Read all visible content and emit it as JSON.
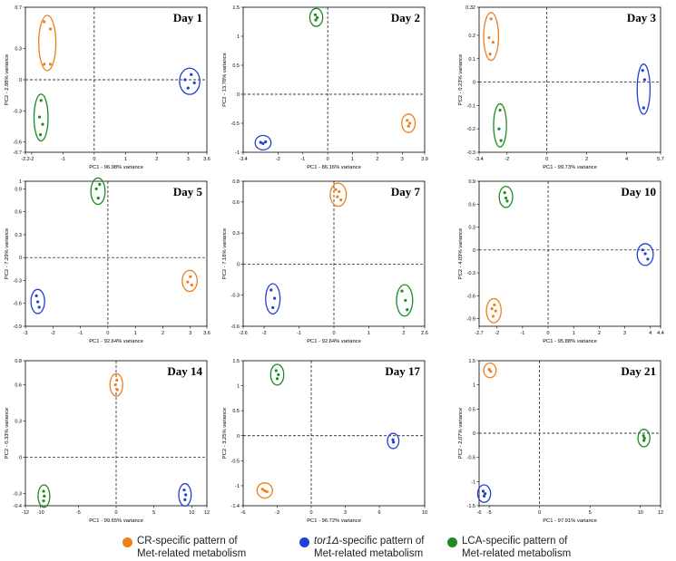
{
  "colors": {
    "CR": "#f07f19",
    "tor1": "#1f3fd8",
    "LCA": "#1f8a1f"
  },
  "legend": [
    {
      "key": "CR",
      "line1": "CR-specific pattern of",
      "line2": "Met-related metabolism"
    },
    {
      "key": "tor1",
      "line1_italic": "tor1Δ",
      "line1_rest": "-specific pattern of",
      "line2": "Met-related metabolism"
    },
    {
      "key": "LCA",
      "line1": "LCA-specific pattern of",
      "line2": "Met-related metabolism"
    }
  ],
  "chart_data": [
    {
      "type": "scatter",
      "title": "Day 1",
      "xlabel": "PC1 - 96.98% variance",
      "ylabel": "PC2 - 2.88% variance",
      "xlim": [
        -2.2,
        3.6
      ],
      "ylim": [
        -0.7,
        0.7
      ],
      "xticks": [
        "-2.2",
        "-2",
        "-1",
        "0",
        "1",
        "2",
        "3",
        "3.6"
      ],
      "xtick_vals": [
        -2.2,
        -2,
        -1,
        0,
        1,
        2,
        3,
        3.6
      ],
      "yticks": [
        "0.7",
        "0.3",
        "0",
        "-0.3",
        "-0.6",
        "-0.7"
      ],
      "ytick_vals": [
        0.7,
        0.3,
        0,
        -0.3,
        -0.6,
        -0.7
      ],
      "series": [
        {
          "name": "CR",
          "points": [
            [
              -1.6,
              0.56
            ],
            [
              -1.4,
              0.49
            ],
            [
              -1.6,
              0.15
            ],
            [
              -1.4,
              0.15
            ]
          ]
        },
        {
          "name": "tor1",
          "points": [
            [
              3.1,
              0.05
            ],
            [
              2.9,
              0.0
            ],
            [
              3.2,
              -0.03
            ],
            [
              3.0,
              -0.08
            ]
          ]
        },
        {
          "name": "LCA",
          "points": [
            [
              -1.7,
              -0.2
            ],
            [
              -1.75,
              -0.36
            ],
            [
              -1.65,
              -0.43
            ],
            [
              -1.72,
              -0.53
            ]
          ]
        }
      ]
    },
    {
      "type": "scatter",
      "title": "Day 2",
      "xlabel": "PC1 - 86.16% variance",
      "ylabel": "PC2 - 13.78% variance",
      "xlim": [
        -3.4,
        3.9
      ],
      "ylim": [
        -1,
        1.5
      ],
      "xticks": [
        "-3.4",
        "-2",
        "-1",
        "0",
        "1",
        "2",
        "3",
        "3.9"
      ],
      "xtick_vals": [
        -3.4,
        -2,
        -1,
        0,
        1,
        2,
        3,
        3.9
      ],
      "yticks": [
        "1.5",
        "1",
        "0.5",
        "0",
        "-0.5",
        "-1"
      ],
      "ytick_vals": [
        1.5,
        1,
        0.5,
        0,
        -0.5,
        -1
      ],
      "series": [
        {
          "name": "CR",
          "points": [
            [
              3.2,
              -0.45
            ],
            [
              3.3,
              -0.5
            ],
            [
              3.25,
              -0.55
            ]
          ]
        },
        {
          "name": "tor1",
          "points": [
            [
              -2.7,
              -0.83
            ],
            [
              -2.6,
              -0.85
            ],
            [
              -2.5,
              -0.82
            ]
          ]
        },
        {
          "name": "LCA",
          "points": [
            [
              -0.5,
              1.37
            ],
            [
              -0.42,
              1.32
            ],
            [
              -0.48,
              1.28
            ]
          ]
        }
      ]
    },
    {
      "type": "scatter",
      "title": "Day 3",
      "xlabel": "PC1 - 99.73% variance",
      "ylabel": "PC2 - 0.23% variance",
      "xlim": [
        -3.4,
        5.7
      ],
      "ylim": [
        -0.3,
        0.32
      ],
      "xticks": [
        "-3.4",
        "-2",
        "0",
        "2",
        "4",
        "5.7"
      ],
      "xtick_vals": [
        -3.4,
        -2,
        0,
        2,
        4,
        5.7
      ],
      "yticks": [
        "0.32",
        "0.2",
        "0.1",
        "0",
        "-0.1",
        "-0.2",
        "-0.3"
      ],
      "ytick_vals": [
        0.32,
        0.2,
        0.1,
        0,
        -0.1,
        -0.2,
        -0.3
      ],
      "series": [
        {
          "name": "CR",
          "points": [
            [
              -2.8,
              0.27
            ],
            [
              -2.9,
              0.19
            ],
            [
              -2.7,
              0.17
            ],
            [
              -2.85,
              0.12
            ]
          ]
        },
        {
          "name": "tor1",
          "points": [
            [
              4.8,
              0.05
            ],
            [
              4.9,
              0.01
            ],
            [
              4.85,
              -0.11
            ]
          ]
        },
        {
          "name": "LCA",
          "points": [
            [
              -2.35,
              -0.12
            ],
            [
              -2.4,
              -0.2
            ],
            [
              -2.3,
              -0.25
            ]
          ]
        }
      ]
    },
    {
      "type": "scatter",
      "title": "Day 5",
      "xlabel": "PC1 - 92.64% variance",
      "ylabel": "PC2 - 7.29% variance",
      "xlim": [
        -3,
        3.6
      ],
      "ylim": [
        -0.9,
        1.0
      ],
      "xticks": [
        "-3",
        "-2",
        "-1",
        "0",
        "1",
        "2",
        "3",
        "3.6"
      ],
      "xtick_vals": [
        -3,
        -2,
        -1,
        0,
        1,
        2,
        3,
        3.6
      ],
      "yticks": [
        "1",
        "0.9",
        "0.6",
        "0.3",
        "0",
        "-0.3",
        "-0.6",
        "-0.9"
      ],
      "ytick_vals": [
        1.0,
        0.9,
        0.6,
        0.3,
        0,
        -0.3,
        -0.6,
        -0.9
      ],
      "series": [
        {
          "name": "CR",
          "points": [
            [
              3.0,
              -0.25
            ],
            [
              2.9,
              -0.32
            ],
            [
              3.05,
              -0.36
            ]
          ]
        },
        {
          "name": "tor1",
          "points": [
            [
              -2.6,
              -0.5
            ],
            [
              -2.55,
              -0.58
            ],
            [
              -2.5,
              -0.65
            ]
          ]
        },
        {
          "name": "LCA",
          "points": [
            [
              -0.3,
              0.96
            ],
            [
              -0.42,
              0.9
            ],
            [
              -0.35,
              0.78
            ]
          ]
        }
      ]
    },
    {
      "type": "scatter",
      "title": "Day 7",
      "xlabel": "PC1 - 92.64% variance",
      "ylabel": "PC2 - 7.18% variance",
      "xlim": [
        -2.6,
        2.6
      ],
      "ylim": [
        -0.6,
        0.8
      ],
      "xticks": [
        "-2.6",
        "-2",
        "-1",
        "0",
        "1",
        "2",
        "2.6"
      ],
      "xtick_vals": [
        -2.6,
        -2,
        -1,
        0,
        1,
        2,
        2.6
      ],
      "yticks": [
        "0.8",
        "0.6",
        "0.3",
        "0",
        "-0.3",
        "-0.6"
      ],
      "ytick_vals": [
        0.8,
        0.6,
        0.3,
        0,
        -0.3,
        -0.6
      ],
      "series": [
        {
          "name": "CR",
          "points": [
            [
              0.05,
              0.72
            ],
            [
              0.15,
              0.7
            ],
            [
              0.1,
              0.65
            ],
            [
              0.2,
              0.62
            ]
          ]
        },
        {
          "name": "tor1",
          "points": [
            [
              -1.8,
              -0.25
            ],
            [
              -1.7,
              -0.33
            ],
            [
              -1.75,
              -0.42
            ]
          ]
        },
        {
          "name": "LCA",
          "points": [
            [
              1.95,
              -0.26
            ],
            [
              2.05,
              -0.35
            ],
            [
              2.1,
              -0.44
            ]
          ]
        }
      ]
    },
    {
      "type": "scatter",
      "title": "Day 10",
      "xlabel": "PC1 - 95.88% variance",
      "ylabel": "PC2 - 4.09% variance",
      "xlim": [
        -2.7,
        4.4
      ],
      "ylim": [
        -1,
        0.9
      ],
      "xticks": [
        "-2.7",
        "-2",
        "-1",
        "0",
        "1",
        "2",
        "3",
        "4",
        "4.4"
      ],
      "xtick_vals": [
        -2.7,
        -2,
        -1,
        0,
        1,
        2,
        3,
        4,
        4.4
      ],
      "yticks": [
        "0.9",
        "0.6",
        "0.3",
        "0",
        "-0.3",
        "-0.6",
        "-0.9"
      ],
      "ytick_vals": [
        0.9,
        0.6,
        0.3,
        0,
        -0.3,
        -0.6,
        -0.9
      ],
      "series": [
        {
          "name": "CR",
          "points": [
            [
              -2.1,
              -0.72
            ],
            [
              -2.2,
              -0.77
            ],
            [
              -2.05,
              -0.8
            ],
            [
              -2.15,
              -0.87
            ]
          ]
        },
        {
          "name": "tor1",
          "points": [
            [
              3.7,
              0.0
            ],
            [
              3.8,
              -0.05
            ],
            [
              3.9,
              -0.12
            ]
          ]
        },
        {
          "name": "LCA",
          "points": [
            [
              -1.7,
              0.75
            ],
            [
              -1.65,
              0.68
            ],
            [
              -1.6,
              0.64
            ]
          ]
        }
      ]
    },
    {
      "type": "scatter",
      "title": "Day 14",
      "xlabel": "PC1 - 99.65% variance",
      "ylabel": "PC2 - 0.33% variance",
      "xlim": [
        -12,
        12
      ],
      "ylim": [
        -0.4,
        0.8
      ],
      "xticks": [
        "-12",
        "-10",
        "-5",
        "0",
        "5",
        "10",
        "12"
      ],
      "xtick_vals": [
        -12,
        -10,
        -5,
        0,
        5,
        10,
        12
      ],
      "yticks": [
        "0.8",
        "0.6",
        "0.3",
        "0",
        "-0.3",
        "-0.4"
      ],
      "ytick_vals": [
        0.8,
        0.6,
        0.3,
        0,
        -0.3,
        -0.4
      ],
      "series": [
        {
          "name": "CR",
          "points": [
            [
              0.1,
              0.64
            ],
            [
              -0.1,
              0.6
            ],
            [
              0.15,
              0.56
            ]
          ]
        },
        {
          "name": "tor1",
          "points": [
            [
              9.0,
              -0.27
            ],
            [
              9.2,
              -0.31
            ],
            [
              9.1,
              -0.35
            ]
          ]
        },
        {
          "name": "LCA",
          "points": [
            [
              -9.6,
              -0.28
            ],
            [
              -9.5,
              -0.32
            ],
            [
              -9.6,
              -0.36
            ]
          ]
        }
      ]
    },
    {
      "type": "scatter",
      "title": "Day 17",
      "xlabel": "PC1 - 96.72% variance",
      "ylabel": "PC2 - 3.25% variance",
      "xlim": [
        -6,
        10
      ],
      "ylim": [
        -1.4,
        1.5
      ],
      "xticks": [
        "-6",
        "-3",
        "0",
        "3",
        "6",
        "10"
      ],
      "xtick_vals": [
        -6,
        -3,
        0,
        3,
        6,
        10
      ],
      "yticks": [
        "1.5",
        "1",
        "0.5",
        "0",
        "-0.5",
        "-1",
        "-1.4"
      ],
      "ytick_vals": [
        1.5,
        1,
        0.5,
        0,
        -0.5,
        -1,
        -1.4
      ],
      "series": [
        {
          "name": "CR",
          "points": [
            [
              -4.3,
              -1.07
            ],
            [
              -4.1,
              -1.1
            ],
            [
              -3.9,
              -1.12
            ]
          ]
        },
        {
          "name": "tor1",
          "points": [
            [
              7.2,
              -0.08
            ],
            [
              7.25,
              -0.13
            ]
          ]
        },
        {
          "name": "LCA",
          "points": [
            [
              -3.1,
              1.3
            ],
            [
              -2.9,
              1.22
            ],
            [
              -3.0,
              1.14
            ]
          ]
        }
      ]
    },
    {
      "type": "scatter",
      "title": "Day 21",
      "xlabel": "PC1 - 97.91% variance",
      "ylabel": "PC2 - 2.07% variance",
      "xlim": [
        -6,
        12
      ],
      "ylim": [
        -1.5,
        1.5
      ],
      "xticks": [
        "-6",
        "-5",
        "0",
        "5",
        "10",
        "12"
      ],
      "xtick_vals": [
        -6,
        -5,
        0,
        5,
        10,
        12
      ],
      "yticks": [
        "1.5",
        "1",
        "0.5",
        "0",
        "-0.5",
        "-1",
        "-1.5"
      ],
      "ytick_vals": [
        1.5,
        1,
        0.5,
        0,
        -0.5,
        -1,
        -1.5
      ],
      "series": [
        {
          "name": "CR",
          "points": [
            [
              -5.0,
              1.32
            ],
            [
              -4.85,
              1.28
            ]
          ]
        },
        {
          "name": "tor1",
          "points": [
            [
              -5.6,
              -1.2
            ],
            [
              -5.4,
              -1.25
            ],
            [
              -5.5,
              -1.3
            ]
          ]
        },
        {
          "name": "LCA",
          "points": [
            [
              10.3,
              -0.05
            ],
            [
              10.4,
              -0.1
            ],
            [
              10.35,
              -0.15
            ]
          ]
        }
      ]
    }
  ]
}
